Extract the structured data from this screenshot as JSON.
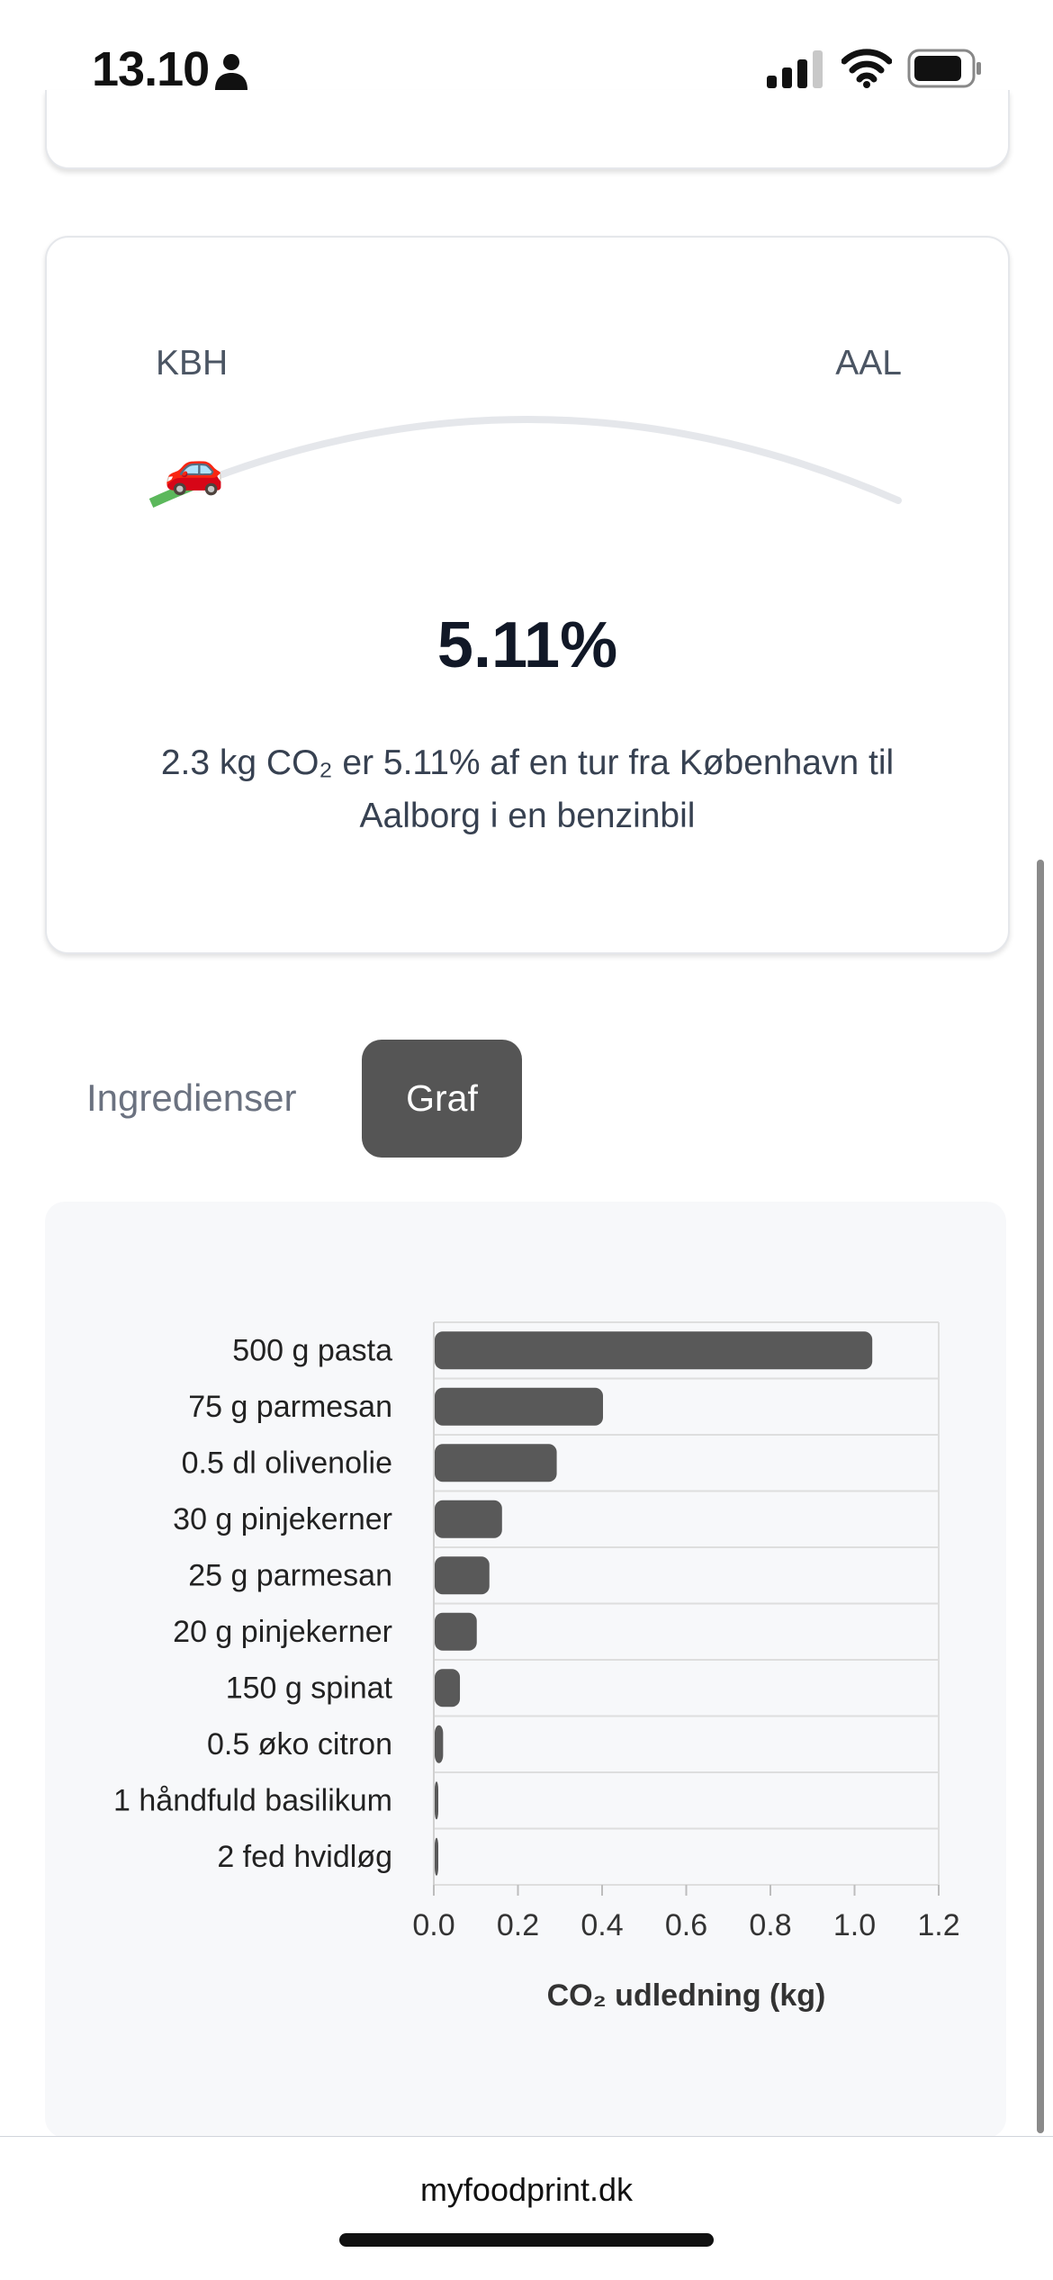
{
  "status_bar": {
    "time": "13.10",
    "icons": [
      "person-icon",
      "signal-icon",
      "wifi-icon",
      "battery-icon"
    ]
  },
  "route_card": {
    "from_label": "KBH",
    "to_label": "AAL",
    "progress_percent": 5.11,
    "percent_text": "5.11%",
    "description": "2.3 kg CO₂ er 5.11% af en tur fra København til Aalborg i en benzinbil",
    "car_icon": "car-icon",
    "progress_color": "#5cb85c",
    "track_color": "#e5e7eb"
  },
  "tabs": {
    "ingredients_label": "Ingredienser",
    "graph_label": "Graf",
    "active": "graph"
  },
  "chart_data": {
    "type": "bar",
    "orientation": "horizontal",
    "categories": [
      "500 g pasta",
      "75 g parmesan",
      "0.5 dl olivenolie",
      "30 g pinjekerner",
      "25 g parmesan",
      "20 g pinjekerner",
      "150 g spinat",
      "0.5 øko citron",
      "1 håndfuld basilikum",
      "2 fed hvidløg"
    ],
    "values": [
      1.04,
      0.4,
      0.29,
      0.16,
      0.13,
      0.1,
      0.06,
      0.02,
      0.005,
      0.005
    ],
    "xlabel": "CO₂ udledning (kg)",
    "xlim": [
      0,
      1.2
    ],
    "xticks": [
      "0.0",
      "0.2",
      "0.4",
      "0.6",
      "0.8",
      "1.0",
      "1.2"
    ],
    "bar_color": "#595959",
    "grid": true
  },
  "footer": {
    "url": "myfoodprint.dk"
  }
}
